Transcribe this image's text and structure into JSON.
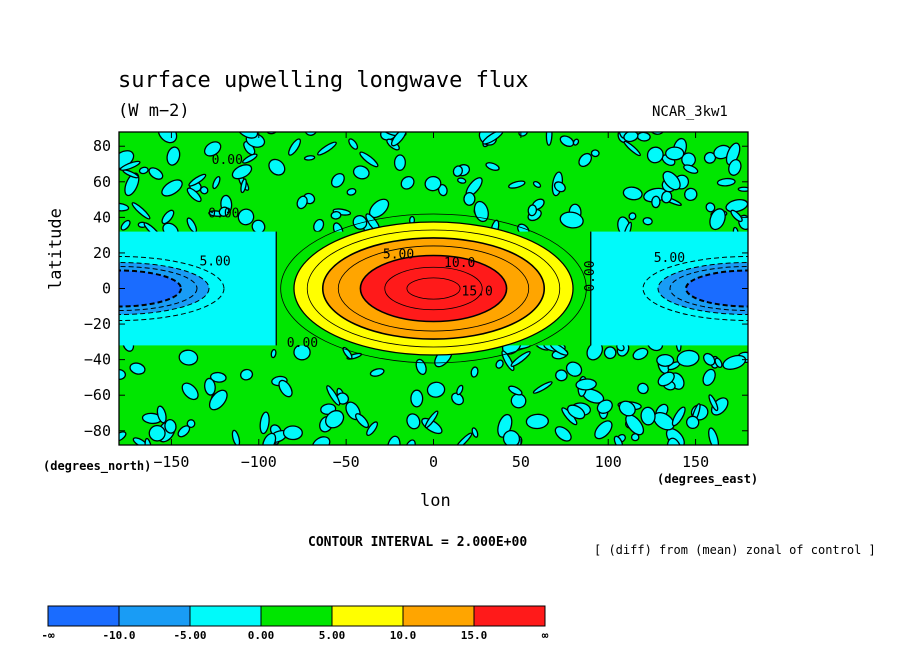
{
  "chart_data": {
    "type": "contour",
    "title": "surface upwelling longwave flux",
    "units_label": "(W m−2)",
    "model_label": "NCAR_3kw1",
    "xlabel": "lon",
    "ylabel": "latitude",
    "x_units": "(degrees_east)",
    "y_units": "(degrees_north)",
    "xlim": [
      -180,
      180
    ],
    "ylim": [
      -88,
      88
    ],
    "x_ticks": [
      -150,
      -100,
      -50,
      0,
      50,
      100,
      150
    ],
    "y_ticks": [
      80,
      60,
      40,
      20,
      0,
      -20,
      -40,
      -60,
      -80
    ],
    "contour_interval_text": "CONTOUR INTERVAL = 2.000E+00",
    "note": "[ (diff) from (mean) zonal of control ]",
    "contour_labels": [
      {
        "text": "5.00",
        "lon": -20,
        "lat": 17
      },
      {
        "text": "10.0",
        "lon": 15,
        "lat": 12
      },
      {
        "text": "15.0",
        "lon": 25,
        "lat": -4
      },
      {
        "text": "0.00",
        "lon": 92,
        "lat": 7
      },
      {
        "text": "5.00",
        "lon": -125,
        "lat": 13
      },
      {
        "text": "5.00",
        "lon": 135,
        "lat": 15
      },
      {
        "text": "0.00",
        "lon": -120,
        "lat": 40
      },
      {
        "text": "0.00",
        "lon": -75,
        "lat": -33
      },
      {
        "text": "0.00",
        "lon": -118,
        "lat": 70
      }
    ],
    "features": {
      "positive_center": {
        "lon": 0,
        "lat": 0,
        "peak": 17
      },
      "negative_centers": [
        {
          "lon": -180,
          "lat": 0
        },
        {
          "lon": 180,
          "lat": 0
        }
      ],
      "smooth_band": {
        "lon": [
          -90,
          90
        ],
        "lat": [
          -32,
          32
        ]
      }
    },
    "colorbar": {
      "levels": [
        "-∞",
        "-10.0",
        "-5.00",
        "0.00",
        "5.00",
        "10.0",
        "15.0",
        "∞"
      ],
      "colors": [
        "#1a6cff",
        "#199cf5",
        "#00fafa",
        "#00e600",
        "#ffff00",
        "#ffa500",
        "#ff1a1a"
      ]
    }
  }
}
